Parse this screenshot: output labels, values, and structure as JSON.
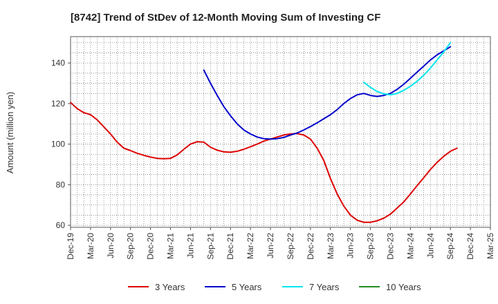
{
  "chart_data": {
    "type": "line",
    "title": "[8742]  Trend of StDev of 12-Month Moving Sum of Investing CF",
    "xlabel": "",
    "ylabel": "Amount (million yen)",
    "ylim": [
      59,
      153
    ],
    "yticks": [
      60,
      80,
      100,
      120,
      140
    ],
    "xlim": [
      "2019-12",
      "2025-03"
    ],
    "xticks": [
      "Dec-19",
      "Mar-20",
      "Jun-20",
      "Sep-20",
      "Dec-20",
      "Mar-21",
      "Jun-21",
      "Sep-21",
      "Dec-21",
      "Mar-22",
      "Jun-22",
      "Sep-22",
      "Dec-22",
      "Mar-23",
      "Jun-23",
      "Sep-23",
      "Dec-23",
      "Mar-24",
      "Jun-24",
      "Sep-24",
      "Dec-24",
      "Mar-25"
    ],
    "grid": true,
    "legend_position": "bottom",
    "series": [
      {
        "name": "3 Years",
        "color": "#dd0000",
        "points": [
          [
            "2019-12",
            120.5
          ],
          [
            "2020-01",
            117.5
          ],
          [
            "2020-02",
            115.5
          ],
          [
            "2020-03",
            114.5
          ],
          [
            "2020-04",
            112
          ],
          [
            "2020-05",
            108.5
          ],
          [
            "2020-06",
            105
          ],
          [
            "2020-07",
            101
          ],
          [
            "2020-08",
            98
          ],
          [
            "2020-09",
            96.8
          ],
          [
            "2020-10",
            95.5
          ],
          [
            "2020-11",
            94.5
          ],
          [
            "2020-12",
            93.6
          ],
          [
            "2021-01",
            93
          ],
          [
            "2021-02",
            92.8
          ],
          [
            "2021-03",
            93
          ],
          [
            "2021-04",
            94.7
          ],
          [
            "2021-05",
            97.5
          ],
          [
            "2021-06",
            100
          ],
          [
            "2021-07",
            101.2
          ],
          [
            "2021-08",
            101
          ],
          [
            "2021-09",
            98.5
          ],
          [
            "2021-10",
            97
          ],
          [
            "2021-11",
            96.2
          ],
          [
            "2021-12",
            96
          ],
          [
            "2022-01",
            96.5
          ],
          [
            "2022-02",
            97.5
          ],
          [
            "2022-03",
            98.7
          ],
          [
            "2022-04",
            100
          ],
          [
            "2022-05",
            101.5
          ],
          [
            "2022-06",
            102.5
          ],
          [
            "2022-07",
            103.5
          ],
          [
            "2022-08",
            104.5
          ],
          [
            "2022-09",
            105
          ],
          [
            "2022-10",
            105.2
          ],
          [
            "2022-11",
            104.5
          ],
          [
            "2022-12",
            102.5
          ],
          [
            "2023-01",
            98
          ],
          [
            "2023-02",
            92
          ],
          [
            "2023-03",
            83
          ],
          [
            "2023-04",
            75.5
          ],
          [
            "2023-05",
            69.5
          ],
          [
            "2023-06",
            65
          ],
          [
            "2023-07",
            62.5
          ],
          [
            "2023-08",
            61.5
          ],
          [
            "2023-09",
            61.5
          ],
          [
            "2023-10",
            62.2
          ],
          [
            "2023-11",
            63.5
          ],
          [
            "2023-12",
            65.5
          ],
          [
            "2024-01",
            68.5
          ],
          [
            "2024-02",
            71.5
          ],
          [
            "2024-03",
            75.5
          ],
          [
            "2024-04",
            79.5
          ],
          [
            "2024-05",
            83.5
          ],
          [
            "2024-06",
            87.5
          ],
          [
            "2024-07",
            91
          ],
          [
            "2024-08",
            94
          ],
          [
            "2024-09",
            96.5
          ],
          [
            "2024-10",
            98
          ]
        ]
      },
      {
        "name": "5 Years",
        "color": "#0000cc",
        "points": [
          [
            "2021-08",
            136.5
          ],
          [
            "2021-09",
            130
          ],
          [
            "2021-10",
            124
          ],
          [
            "2021-11",
            118.5
          ],
          [
            "2021-12",
            114
          ],
          [
            "2022-01",
            110
          ],
          [
            "2022-02",
            107
          ],
          [
            "2022-03",
            105
          ],
          [
            "2022-04",
            103.5
          ],
          [
            "2022-05",
            102.7
          ],
          [
            "2022-06",
            102.5
          ],
          [
            "2022-07",
            102.7
          ],
          [
            "2022-08",
            103.3
          ],
          [
            "2022-09",
            104.5
          ],
          [
            "2022-10",
            105.5
          ],
          [
            "2022-11",
            107
          ],
          [
            "2022-12",
            108.7
          ],
          [
            "2023-01",
            110.5
          ],
          [
            "2023-02",
            112.5
          ],
          [
            "2023-03",
            114.5
          ],
          [
            "2023-04",
            117
          ],
          [
            "2023-05",
            120
          ],
          [
            "2023-06",
            122.5
          ],
          [
            "2023-07",
            124.3
          ],
          [
            "2023-08",
            125
          ],
          [
            "2023-09",
            124
          ],
          [
            "2023-10",
            123.5
          ],
          [
            "2023-11",
            124
          ],
          [
            "2023-12",
            125
          ],
          [
            "2024-01",
            127
          ],
          [
            "2024-02",
            129.5
          ],
          [
            "2024-03",
            132.5
          ],
          [
            "2024-04",
            135.5
          ],
          [
            "2024-05",
            138.5
          ],
          [
            "2024-06",
            141.5
          ],
          [
            "2024-07",
            144
          ],
          [
            "2024-08",
            146
          ],
          [
            "2024-09",
            148
          ]
        ]
      },
      {
        "name": "7 Years",
        "color": "#00e5ee",
        "points": [
          [
            "2023-08",
            130.5
          ],
          [
            "2023-09",
            128
          ],
          [
            "2023-10",
            126
          ],
          [
            "2023-11",
            124.8
          ],
          [
            "2023-12",
            124.3
          ],
          [
            "2024-01",
            125
          ],
          [
            "2024-02",
            126.5
          ],
          [
            "2024-03",
            128.5
          ],
          [
            "2024-04",
            131
          ],
          [
            "2024-05",
            134
          ],
          [
            "2024-06",
            137.5
          ],
          [
            "2024-07",
            141.5
          ],
          [
            "2024-08",
            145.5
          ],
          [
            "2024-09",
            150
          ]
        ]
      },
      {
        "name": "10 Years",
        "color": "#228b22",
        "points": []
      }
    ]
  }
}
